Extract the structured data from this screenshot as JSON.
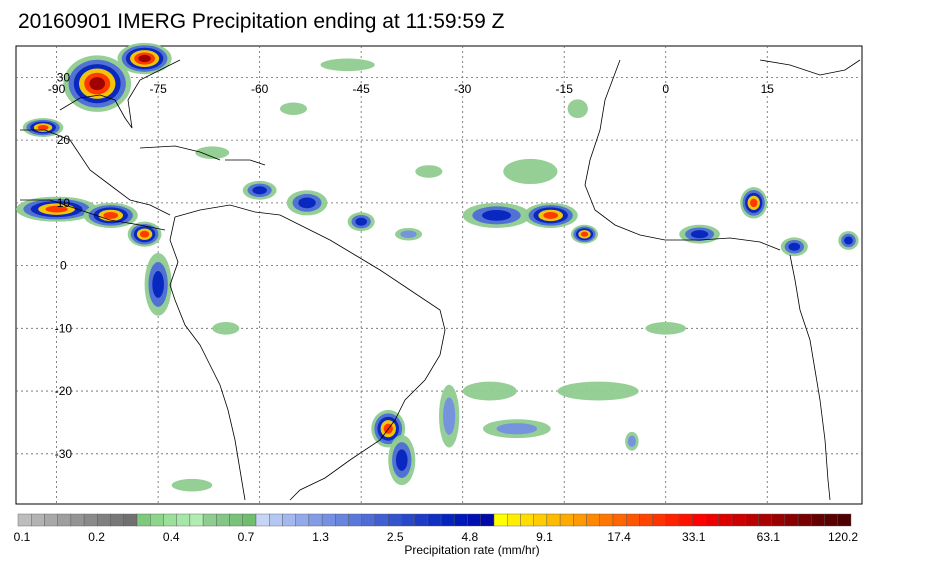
{
  "title": "20160901 IMERG Precipitation ending at 11:59:59 Z",
  "map": {
    "lon_range": [
      -96,
      29
    ],
    "lat_range": [
      -38,
      35
    ],
    "lon_ticks": [
      -90,
      -75,
      -60,
      -45,
      -30,
      -15,
      0,
      15
    ],
    "lat_ticks": [
      30,
      20,
      10,
      0,
      -10,
      -20,
      -30
    ],
    "lon_tick_labels": [
      "-90",
      "-75",
      "-60",
      "-45",
      "-30",
      "-15",
      "0",
      "15"
    ],
    "lat_tick_labels": [
      "30",
      "20",
      "10",
      "0",
      "-10",
      "-20",
      "-30"
    ],
    "grid": true
  },
  "colorbar": {
    "label": "Precipitation rate (mm/hr)",
    "tick_labels": [
      "0.1",
      "0.2",
      "0.4",
      "0.7",
      "1.3",
      "2.5",
      "4.8",
      "9.1",
      "17.4",
      "33.1",
      "63.1",
      "120.2"
    ],
    "colors": [
      "#bdbdbd",
      "#b3b3b3",
      "#a8a8a8",
      "#9e9e9e",
      "#949494",
      "#8a8a8a",
      "#808080",
      "#787878",
      "#707070",
      "#7ec97e",
      "#8cd68c",
      "#9ae09a",
      "#a6e6a6",
      "#b2ecb2",
      "#8fcc8f",
      "#84c784",
      "#79c279",
      "#6fbd6f",
      "#c6d4f5",
      "#b4c6f2",
      "#a3b8ee",
      "#93aaea",
      "#839ce6",
      "#7490e2",
      "#6784de",
      "#5a78da",
      "#4d6cd6",
      "#4060d2",
      "#3454ce",
      "#2848ca",
      "#1c3cc6",
      "#1030c2",
      "#0424be",
      "#0018b8",
      "#0010b0",
      "#0008a8",
      "#ffff00",
      "#ffee00",
      "#ffdd00",
      "#ffcc00",
      "#ffbb00",
      "#ffaa00",
      "#ff9900",
      "#ff8800",
      "#ff7700",
      "#ff6600",
      "#ff5500",
      "#ff4400",
      "#ff3300",
      "#ff2200",
      "#ff1100",
      "#ff0000",
      "#ee0000",
      "#dd0000",
      "#cc0000",
      "#bb0000",
      "#aa0000",
      "#990000",
      "#880000",
      "#770000",
      "#660000",
      "#5a0000",
      "#4e0000"
    ]
  },
  "precip": [
    {
      "lon": -84,
      "lat": 29,
      "rx": 5,
      "ry": 4.5,
      "level": 5
    },
    {
      "lon": -77,
      "lat": 33,
      "rx": 4,
      "ry": 2.5,
      "level": 5
    },
    {
      "lon": -92,
      "lat": 22,
      "rx": 3,
      "ry": 1.5,
      "level": 4
    },
    {
      "lon": -90,
      "lat": 9,
      "rx": 6,
      "ry": 2,
      "level": 4
    },
    {
      "lon": -82,
      "lat": 8,
      "rx": 4,
      "ry": 2,
      "level": 4
    },
    {
      "lon": -77,
      "lat": 5,
      "rx": 2.5,
      "ry": 2,
      "level": 4
    },
    {
      "lon": -75,
      "lat": -3,
      "rx": 2,
      "ry": 5,
      "level": 3
    },
    {
      "lon": -60,
      "lat": 12,
      "rx": 2.5,
      "ry": 1.5,
      "level": 3
    },
    {
      "lon": -53,
      "lat": 10,
      "rx": 3,
      "ry": 2,
      "level": 3
    },
    {
      "lon": -45,
      "lat": 7,
      "rx": 2,
      "ry": 1.5,
      "level": 3
    },
    {
      "lon": -38,
      "lat": 5,
      "rx": 2,
      "ry": 1,
      "level": 2
    },
    {
      "lon": -25,
      "lat": 8,
      "rx": 5,
      "ry": 2,
      "level": 3
    },
    {
      "lon": -17,
      "lat": 8,
      "rx": 4,
      "ry": 2,
      "level": 4
    },
    {
      "lon": -12,
      "lat": 5,
      "rx": 2,
      "ry": 1.5,
      "level": 4
    },
    {
      "lon": 5,
      "lat": 5,
      "rx": 3,
      "ry": 1.5,
      "level": 3
    },
    {
      "lon": 13,
      "lat": 10,
      "rx": 2,
      "ry": 2.5,
      "level": 4
    },
    {
      "lon": 19,
      "lat": 3,
      "rx": 2,
      "ry": 1.5,
      "level": 3
    },
    {
      "lon": 27,
      "lat": 4,
      "rx": 1.5,
      "ry": 1.5,
      "level": 3
    },
    {
      "lon": -41,
      "lat": -26,
      "rx": 2.5,
      "ry": 3,
      "level": 4
    },
    {
      "lon": -39,
      "lat": -31,
      "rx": 2,
      "ry": 4,
      "level": 3
    },
    {
      "lon": -32,
      "lat": -24,
      "rx": 1.5,
      "ry": 5,
      "level": 2
    },
    {
      "lon": -22,
      "lat": -26,
      "rx": 5,
      "ry": 1.5,
      "level": 2
    },
    {
      "lon": -47,
      "lat": 32,
      "rx": 4,
      "ry": 1,
      "level": 1
    },
    {
      "lon": -55,
      "lat": 25,
      "rx": 2,
      "ry": 1,
      "level": 1
    },
    {
      "lon": -20,
      "lat": 15,
      "rx": 4,
      "ry": 2,
      "level": 1
    },
    {
      "lon": -35,
      "lat": 15,
      "rx": 2,
      "ry": 1,
      "level": 1
    },
    {
      "lon": -65,
      "lat": -10,
      "rx": 2,
      "ry": 1,
      "level": 1
    },
    {
      "lon": -10,
      "lat": -20,
      "rx": 6,
      "ry": 1.5,
      "level": 1
    },
    {
      "lon": -70,
      "lat": -35,
      "rx": 3,
      "ry": 1,
      "level": 1
    },
    {
      "lon": -26,
      "lat": -20,
      "rx": 4,
      "ry": 1.5,
      "level": 1
    },
    {
      "lon": 0,
      "lat": -10,
      "rx": 3,
      "ry": 1,
      "level": 1
    },
    {
      "lon": -5,
      "lat": -28,
      "rx": 1,
      "ry": 1.5,
      "level": 2
    },
    {
      "lon": -67,
      "lat": 18,
      "rx": 2.5,
      "ry": 1,
      "level": 1
    },
    {
      "lon": -13,
      "lat": 25,
      "rx": 1.5,
      "ry": 1.5,
      "level": 1
    }
  ]
}
